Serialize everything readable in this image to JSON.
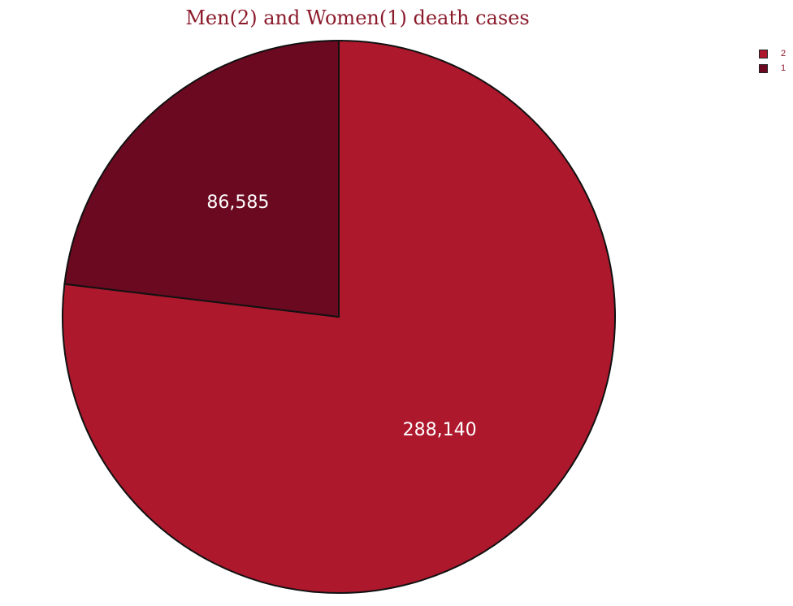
{
  "title": "Men(2) and Women(1) death cases",
  "chart_data": {
    "type": "pie",
    "title": "Men(2) and Women(1) death cases",
    "slices": [
      {
        "label": "2",
        "value": 288140,
        "value_text": "288,140",
        "color": "#ad182d"
      },
      {
        "label": "1",
        "value": 86585,
        "value_text": "86,585",
        "color": "#6a0920"
      }
    ],
    "legend_position": "top-right",
    "start_angle_deg": 0,
    "direction": "clockwise",
    "border_color": "#111111"
  }
}
